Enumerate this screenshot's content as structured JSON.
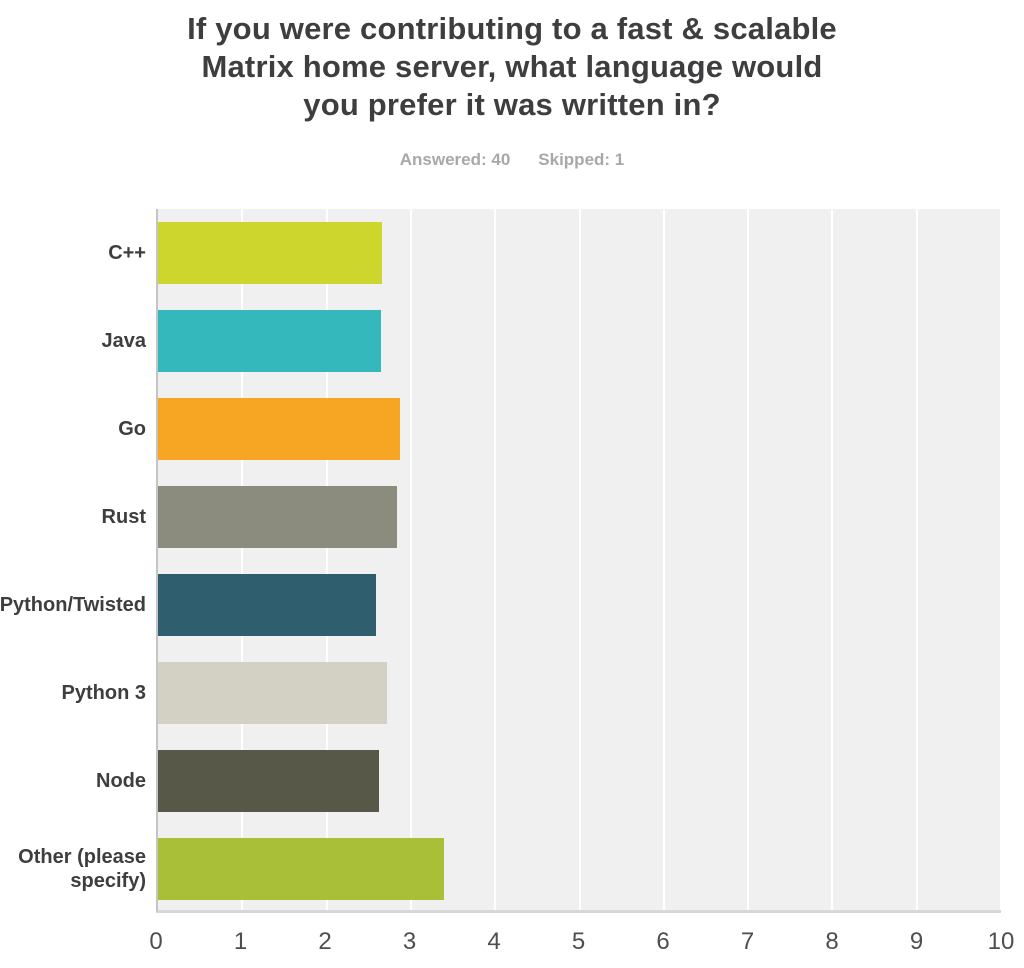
{
  "header": {
    "title_lines": [
      "If you were contributing to a fast & scalable",
      "Matrix home server, what language would",
      "you prefer it was written in?"
    ],
    "answered_label": "Answered: 40",
    "skipped_label": "Skipped: 1"
  },
  "chart_data": {
    "type": "bar",
    "orientation": "horizontal",
    "title": "If you were contributing to a fast & scalable Matrix home server, what language would you prefer it was written in?",
    "subtitle": "Answered: 40  Skipped: 1",
    "answered": 40,
    "skipped": 1,
    "categories": [
      "C++",
      "Java",
      "Go",
      "Rust",
      "Python/Twisted",
      "Python 3",
      "Node",
      "Other (please specify)"
    ],
    "values": [
      2.66,
      2.65,
      2.87,
      2.83,
      2.59,
      2.72,
      2.62,
      3.39
    ],
    "colors": [
      "#ccd62c",
      "#35b8bb",
      "#f6a623",
      "#8b8c7e",
      "#2f5f6e",
      "#d2d1c3",
      "#575848",
      "#aabf38"
    ],
    "xlabel": "",
    "ylabel": "",
    "xlim": [
      0,
      10
    ],
    "x_ticks": [
      "0",
      "1",
      "2",
      "3",
      "4",
      "5",
      "6",
      "7",
      "8",
      "9",
      "10"
    ],
    "grid": true,
    "legend": false,
    "plot_background": "#f0f0f0",
    "gridline_color": "#ffffff"
  }
}
